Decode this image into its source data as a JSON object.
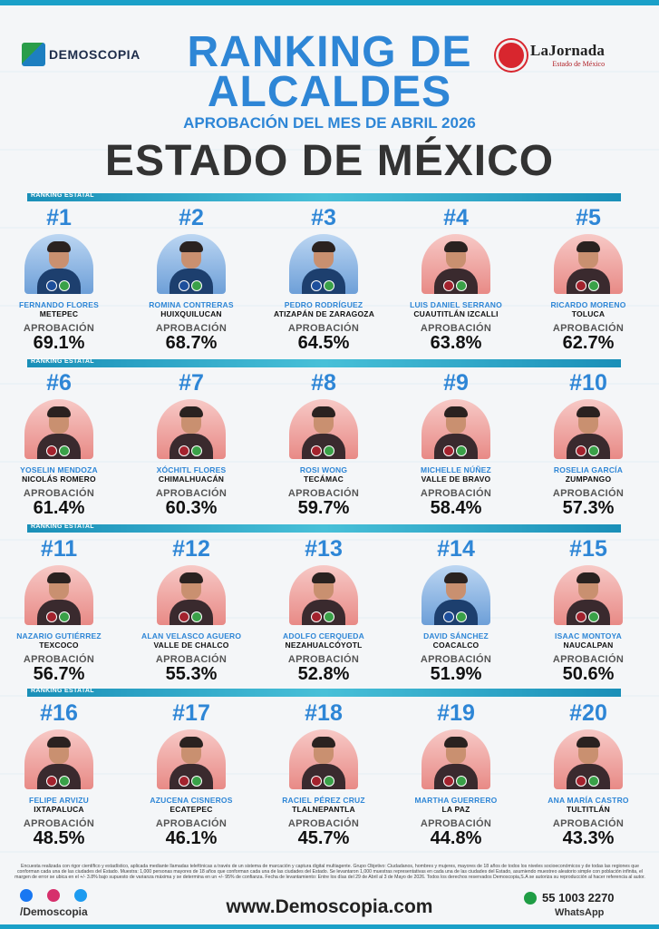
{
  "brand_left": "DEMOSCOPIA",
  "brand_right": {
    "name": "LaJornada",
    "sub": "Estado de México"
  },
  "title_line1": "RANKING DE",
  "title_line2": "ALCALDES",
  "subtitle": "APROBACIÓN DEL MES DE ABRIL 2026",
  "state": "ESTADO DE MÉXICO",
  "rank_label": "RANKING ESTATAL",
  "approval_label": "APROBACIÓN",
  "colors": {
    "accent": "#2e86d6",
    "bar": "#1aa0c8",
    "morena": "#a3222d",
    "pan": "#1d4f9c"
  },
  "mayors": [
    {
      "rank": "#1",
      "name": "FERNANDO FLORES",
      "city": "METEPEC",
      "approval": "69.1%",
      "bg": "blue",
      "party": "pan"
    },
    {
      "rank": "#2",
      "name": "ROMINA CONTRERAS",
      "city": "HUIXQUILUCAN",
      "approval": "68.7%",
      "bg": "blue",
      "party": "pan"
    },
    {
      "rank": "#3",
      "name": "PEDRO RODRÍGUEZ",
      "city": "ATIZAPÁN DE ZARAGOZA",
      "approval": "64.5%",
      "bg": "blue",
      "party": "pan"
    },
    {
      "rank": "#4",
      "name": "LUIS DANIEL SERRANO",
      "city": "CUAUTITLÁN IZCALLI",
      "approval": "63.8%",
      "bg": "red",
      "party": "morena"
    },
    {
      "rank": "#5",
      "name": "RICARDO MORENO",
      "city": "TOLUCA",
      "approval": "62.7%",
      "bg": "red",
      "party": "morena"
    },
    {
      "rank": "#6",
      "name": "YOSELIN MENDOZA",
      "city": "NICOLÁS ROMERO",
      "approval": "61.4%",
      "bg": "red",
      "party": "morena"
    },
    {
      "rank": "#7",
      "name": "XÓCHITL FLORES",
      "city": "CHIMALHUACÁN",
      "approval": "60.3%",
      "bg": "red",
      "party": "morena"
    },
    {
      "rank": "#8",
      "name": "ROSI WONG",
      "city": "TECÁMAC",
      "approval": "59.7%",
      "bg": "red",
      "party": "morena"
    },
    {
      "rank": "#9",
      "name": "MICHELLE NÚÑEZ",
      "city": "VALLE DE BRAVO",
      "approval": "58.4%",
      "bg": "red",
      "party": "morena"
    },
    {
      "rank": "#10",
      "name": "ROSELIA GARCÍA",
      "city": "ZUMPANGO",
      "approval": "57.3%",
      "bg": "red",
      "party": "morena"
    },
    {
      "rank": "#11",
      "name": "NAZARIO GUTIÉRREZ",
      "city": "TEXCOCO",
      "approval": "56.7%",
      "bg": "red",
      "party": "morena"
    },
    {
      "rank": "#12",
      "name": "ALAN VELASCO AGUERO",
      "city": "VALLE DE CHALCO",
      "approval": "55.3%",
      "bg": "red",
      "party": "morena"
    },
    {
      "rank": "#13",
      "name": "ADOLFO CERQUEDA",
      "city": "NEZAHUALCÓYOTL",
      "approval": "52.8%",
      "bg": "red",
      "party": "morena"
    },
    {
      "rank": "#14",
      "name": "DAVID SÁNCHEZ",
      "city": "COACALCO",
      "approval": "51.9%",
      "bg": "blue",
      "party": "pan"
    },
    {
      "rank": "#15",
      "name": "ISAAC MONTOYA",
      "city": "NAUCALPAN",
      "approval": "50.6%",
      "bg": "red",
      "party": "morena"
    },
    {
      "rank": "#16",
      "name": "FELIPE ARVIZU",
      "city": "IXTAPALUCA",
      "approval": "48.5%",
      "bg": "red",
      "party": "morena"
    },
    {
      "rank": "#17",
      "name": "AZUCENA CISNEROS",
      "city": "ECATEPEC",
      "approval": "46.1%",
      "bg": "red",
      "party": "morena"
    },
    {
      "rank": "#18",
      "name": "RACIEL PÉREZ CRUZ",
      "city": "TLALNEPANTLA",
      "approval": "45.7%",
      "bg": "red",
      "party": "morena"
    },
    {
      "rank": "#19",
      "name": "MARTHA GUERRERO",
      "city": "LA PAZ",
      "approval": "44.8%",
      "bg": "red",
      "party": "morena"
    },
    {
      "rank": "#20",
      "name": "ANA MARÍA CASTRO",
      "city": "TULTITLÁN",
      "approval": "43.3%",
      "bg": "red",
      "party": "morena"
    }
  ],
  "footnote": "Encuesta realizada con rigor científico y estadístico, aplicada mediante llamadas telefónicas a través de un sistema de marcación y captura digital multiagente. Grupo Objetivo: Ciudadanos, hombres y mujeres, mayores de 18 años de todos los niveles socioeconómicos y de todas las regiones que conforman cada una de las ciudades del Estado. Muestra: 1,000 personas mayores de 18 años que conforman cada una de las ciudades del Estado. Se levantaron 1,000 muestras representativas en cada una de las ciudades del Estado, asumiendo muestreo aleatorio simple con población infinita, el margen de error se ubica en el +/- 3.8% bajo supuesto de varianza máxima y se determina en un +/- 95% de confianza. Fecha de levantamiento: Entre los días del 29 de Abril al 3 de Mayo de 2026. Todos los derechos reservados Demoscopia,S.A se autoriza su reproducción al hacer referencia al autor.",
  "handle": "/Demoscopia",
  "website": "www.Demoscopia.com",
  "phone": "55 1003 2270",
  "whatsapp_label": "WhatsApp"
}
